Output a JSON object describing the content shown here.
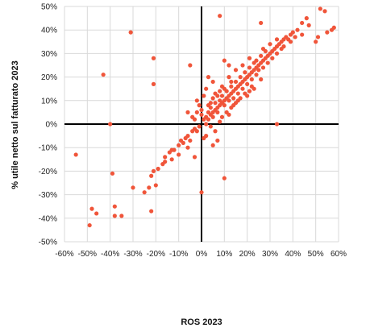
{
  "chart_data": {
    "type": "scatter",
    "title": "",
    "xlabel": "ROS 2023",
    "ylabel": "% utile netto sul fatturato 2023",
    "xlim": [
      -0.6,
      0.6
    ],
    "ylim": [
      -0.5,
      0.5
    ],
    "x_ticks": [
      -0.6,
      -0.5,
      -0.4,
      -0.3,
      -0.2,
      -0.1,
      0,
      0.1,
      0.2,
      0.3,
      0.4,
      0.5,
      0.6
    ],
    "y_ticks": [
      -0.5,
      -0.4,
      -0.3,
      -0.2,
      -0.1,
      0,
      0.1,
      0.2,
      0.3,
      0.4,
      0.5
    ],
    "x_tick_labels": [
      "-60%",
      "-50%",
      "-40%",
      "-30%",
      "-20%",
      "-10%",
      "0%",
      "10%",
      "20%",
      "30%",
      "40%",
      "50%",
      "60%"
    ],
    "y_tick_labels": [
      "-50%",
      "-40%",
      "-30%",
      "-20%",
      "-10%",
      "0%",
      "10%",
      "20%",
      "30%",
      "40%",
      "50%"
    ],
    "grid": true,
    "legend": "none",
    "colors": {
      "points": "#f0553a",
      "grid": "#d9d9d9",
      "zero_axes": "#000000"
    },
    "series": [
      {
        "points": [
          [
            -0.55,
            -0.13
          ],
          [
            -0.49,
            -0.43
          ],
          [
            -0.48,
            -0.36
          ],
          [
            -0.46,
            -0.38
          ],
          [
            -0.43,
            0.21
          ],
          [
            -0.4,
            0.0
          ],
          [
            -0.39,
            -0.21
          ],
          [
            -0.38,
            -0.39
          ],
          [
            -0.38,
            -0.35
          ],
          [
            -0.35,
            -0.39
          ],
          [
            -0.31,
            0.39
          ],
          [
            -0.3,
            -0.27
          ],
          [
            -0.25,
            -0.29
          ],
          [
            -0.23,
            -0.27
          ],
          [
            -0.22,
            -0.37
          ],
          [
            -0.21,
            0.28
          ],
          [
            -0.21,
            0.17
          ],
          [
            -0.2,
            -0.26
          ],
          [
            -0.22,
            -0.22
          ],
          [
            -0.21,
            -0.2
          ],
          [
            -0.19,
            -0.19
          ],
          [
            -0.17,
            -0.17
          ],
          [
            -0.16,
            -0.14
          ],
          [
            -0.14,
            -0.12
          ],
          [
            -0.13,
            -0.11
          ],
          [
            -0.12,
            -0.11
          ],
          [
            -0.1,
            -0.09
          ],
          [
            -0.09,
            -0.07
          ],
          [
            -0.08,
            -0.08
          ],
          [
            -0.07,
            -0.06
          ],
          [
            -0.06,
            -0.05
          ],
          [
            -0.05,
            -0.07
          ],
          [
            -0.04,
            -0.03
          ],
          [
            -0.03,
            -0.02
          ],
          [
            -0.02,
            -0.03
          ],
          [
            -0.01,
            -0.01
          ],
          [
            -0.05,
            0.25
          ],
          [
            -0.03,
            -0.14
          ],
          [
            -0.06,
            0.05
          ],
          [
            -0.04,
            0.03
          ],
          [
            0.0,
            -0.29
          ],
          [
            0.0,
            0.04
          ],
          [
            0.01,
            0.02
          ],
          [
            0.02,
            0.0
          ],
          [
            0.02,
            0.03
          ],
          [
            0.03,
            0.05
          ],
          [
            0.03,
            0.02
          ],
          [
            0.04,
            0.04
          ],
          [
            0.04,
            0.07
          ],
          [
            0.05,
            0.05
          ],
          [
            0.05,
            0.03
          ],
          [
            0.06,
            0.06
          ],
          [
            0.06,
            0.09
          ],
          [
            0.07,
            0.07
          ],
          [
            0.07,
            0.05
          ],
          [
            0.08,
            0.08
          ],
          [
            0.08,
            0.1
          ],
          [
            0.09,
            0.09
          ],
          [
            0.09,
            0.12
          ],
          [
            0.1,
            0.1
          ],
          [
            0.1,
            0.08
          ],
          [
            0.11,
            0.11
          ],
          [
            0.11,
            0.14
          ],
          [
            0.12,
            0.12
          ],
          [
            0.12,
            0.1
          ],
          [
            0.13,
            0.13
          ],
          [
            0.13,
            0.16
          ],
          [
            0.14,
            0.14
          ],
          [
            0.14,
            0.11
          ],
          [
            0.15,
            0.15
          ],
          [
            0.15,
            0.18
          ],
          [
            0.16,
            0.16
          ],
          [
            0.16,
            0.13
          ],
          [
            0.17,
            0.17
          ],
          [
            0.17,
            0.2
          ],
          [
            0.18,
            0.18
          ],
          [
            0.18,
            0.15
          ],
          [
            0.19,
            0.19
          ],
          [
            0.19,
            0.22
          ],
          [
            0.2,
            0.2
          ],
          [
            0.2,
            0.17
          ],
          [
            0.21,
            0.21
          ],
          [
            0.21,
            0.24
          ],
          [
            0.22,
            0.22
          ],
          [
            0.22,
            0.19
          ],
          [
            0.23,
            0.23
          ],
          [
            0.23,
            0.26
          ],
          [
            0.24,
            0.24
          ],
          [
            0.24,
            0.21
          ],
          [
            0.25,
            0.25
          ],
          [
            0.25,
            0.23
          ],
          [
            0.26,
            0.26
          ],
          [
            0.26,
            0.29
          ],
          [
            0.27,
            0.27
          ],
          [
            0.27,
            0.24
          ],
          [
            0.28,
            0.28
          ],
          [
            0.28,
            0.31
          ],
          [
            0.29,
            0.29
          ],
          [
            0.29,
            0.26
          ],
          [
            0.3,
            0.3
          ],
          [
            0.31,
            0.31
          ],
          [
            0.31,
            0.28
          ],
          [
            0.32,
            0.32
          ],
          [
            0.33,
            0.33
          ],
          [
            0.33,
            0.3
          ],
          [
            0.34,
            0.34
          ],
          [
            0.35,
            0.35
          ],
          [
            0.35,
            0.32
          ],
          [
            0.36,
            0.36
          ],
          [
            0.37,
            0.37
          ],
          [
            0.38,
            0.36
          ],
          [
            0.39,
            0.38
          ],
          [
            0.4,
            0.39
          ],
          [
            0.42,
            0.4
          ],
          [
            0.44,
            0.43
          ],
          [
            0.46,
            0.45
          ],
          [
            0.5,
            0.35
          ],
          [
            0.51,
            0.37
          ],
          [
            0.52,
            0.49
          ],
          [
            0.54,
            0.48
          ],
          [
            0.55,
            0.39
          ],
          [
            0.57,
            0.4
          ],
          [
            0.58,
            0.41
          ],
          [
            0.08,
            0.46
          ],
          [
            0.26,
            0.43
          ],
          [
            0.33,
            0.0
          ],
          [
            0.05,
            0.18
          ],
          [
            0.1,
            0.27
          ],
          [
            0.12,
            0.25
          ],
          [
            0.03,
            0.2
          ],
          [
            0.09,
            0.03
          ],
          [
            0.12,
            0.04
          ],
          [
            0.15,
            0.09
          ],
          [
            0.2,
            0.12
          ],
          [
            0.23,
            0.15
          ],
          [
            0.26,
            0.19
          ],
          [
            0.04,
            -0.01
          ],
          [
            0.06,
            -0.03
          ],
          [
            0.07,
            -0.07
          ],
          [
            0.1,
            -0.23
          ],
          [
            0.01,
            0.12
          ],
          [
            0.02,
            0.15
          ],
          [
            -0.01,
            0.08
          ],
          [
            -0.02,
            0.1
          ],
          [
            -0.02,
            0.05
          ],
          [
            0.13,
            0.07
          ],
          [
            0.16,
            0.1
          ],
          [
            0.19,
            0.13
          ],
          [
            0.22,
            0.16
          ],
          [
            0.24,
            0.27
          ],
          [
            0.27,
            0.32
          ],
          [
            0.3,
            0.34
          ],
          [
            0.33,
            0.36
          ],
          [
            0.36,
            0.33
          ],
          [
            0.39,
            0.35
          ],
          [
            0.41,
            0.37
          ],
          [
            0.44,
            0.38
          ],
          [
            0.47,
            0.42
          ],
          [
            0.02,
            -0.05
          ],
          [
            0.05,
            -0.09
          ],
          [
            0.01,
            -0.06
          ],
          [
            -0.06,
            -0.1
          ],
          [
            -0.1,
            -0.13
          ],
          [
            -0.13,
            -0.15
          ],
          [
            -0.16,
            -0.16
          ],
          [
            0.08,
            0.01
          ],
          [
            0.11,
            0.05
          ],
          [
            0.14,
            0.08
          ],
          [
            0.17,
            0.11
          ],
          [
            0.21,
            0.14
          ],
          [
            0.06,
            0.13
          ],
          [
            0.09,
            0.16
          ],
          [
            0.12,
            0.2
          ],
          [
            0.15,
            0.23
          ],
          [
            0.18,
            0.25
          ],
          [
            0.21,
            0.28
          ],
          [
            0.04,
            0.09
          ],
          [
            0.07,
            0.12
          ],
          [
            0.1,
            0.15
          ],
          [
            0.13,
            0.18
          ],
          [
            0.0,
            0.06
          ],
          [
            -0.03,
            0.02
          ],
          [
            0.03,
            0.08
          ],
          [
            0.05,
            0.11
          ],
          [
            0.08,
            0.14
          ]
        ]
      }
    ]
  }
}
